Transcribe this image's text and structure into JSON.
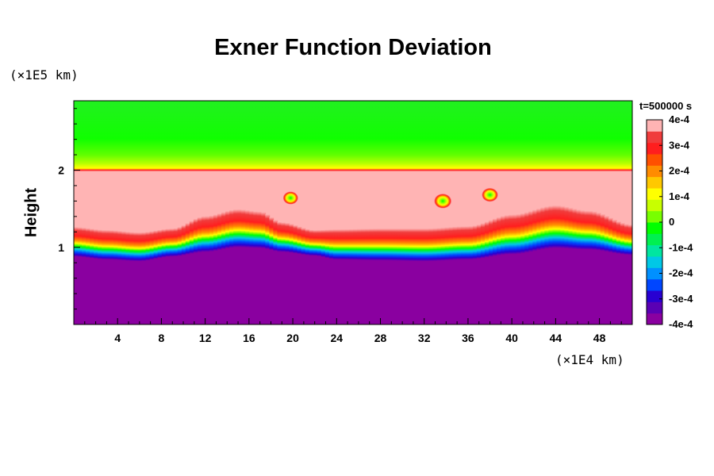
{
  "chart_data": {
    "type": "heatmap",
    "title": "Exner Function Deviation",
    "ylabel": "Height",
    "x_unit": "(×1E4 km)",
    "y_unit": "(×1E5 km)",
    "time_label": "t=500000 s",
    "xlim": [
      0,
      51
    ],
    "ylim": [
      0,
      2.9
    ],
    "x_ticks": [
      4,
      8,
      12,
      16,
      20,
      24,
      28,
      32,
      36,
      40,
      44,
      48
    ],
    "y_ticks": [
      1,
      2
    ],
    "colorbar": {
      "min": -0.0004,
      "max": 0.0004,
      "ticks": [
        {
          "value": 0.0004,
          "label": "4e-4"
        },
        {
          "value": 0.0003,
          "label": "3e-4"
        },
        {
          "value": 0.0002,
          "label": "2e-4"
        },
        {
          "value": 0.0001,
          "label": "1e-4"
        },
        {
          "value": 0,
          "label": "0"
        },
        {
          "value": -0.0001,
          "label": "-1e-4"
        },
        {
          "value": -0.0002,
          "label": "-2e-4"
        },
        {
          "value": -0.0003,
          "label": "-3e-4"
        },
        {
          "value": -0.0004,
          "label": "-4e-4"
        }
      ],
      "colors": [
        "#8a00a0",
        "#5a00b4",
        "#2800d2",
        "#0046ff",
        "#0090ff",
        "#00c8e6",
        "#00e6a0",
        "#00f050",
        "#00ff00",
        "#78ff00",
        "#c8ff00",
        "#ffff00",
        "#ffc800",
        "#ff8c00",
        "#ff5000",
        "#ff1e1e",
        "#f03c3c",
        "#ffb4b4"
      ]
    },
    "regions": {
      "upper_band": {
        "y_range": [
          2.0,
          2.9
        ],
        "value": 0
      },
      "middle_band": {
        "value": 0.0004
      },
      "lower_band": {
        "value": -0.0004
      },
      "interface_top_y": 2.0,
      "lower_interface": {
        "x": [
          0,
          3,
          6,
          9,
          12,
          15,
          17,
          19,
          22,
          24,
          28,
          32,
          36,
          40,
          44,
          47,
          51
        ],
        "y_warm": [
          1.12,
          1.08,
          1.05,
          1.1,
          1.26,
          1.35,
          1.32,
          1.18,
          1.08,
          1.09,
          1.1,
          1.1,
          1.13,
          1.28,
          1.4,
          1.33,
          1.15
        ],
        "y_cold": [
          0.92,
          0.88,
          0.86,
          0.92,
          0.98,
          1.04,
          1.03,
          0.98,
          0.93,
          0.88,
          0.87,
          0.86,
          0.88,
          0.95,
          1.03,
          1.01,
          0.94
        ]
      },
      "blobs": [
        {
          "x": 19.8,
          "y": 1.64,
          "r": 0.7
        },
        {
          "x": 33.7,
          "y": 1.6,
          "r": 0.8
        },
        {
          "x": 38.0,
          "y": 1.68,
          "r": 0.75
        }
      ]
    }
  }
}
